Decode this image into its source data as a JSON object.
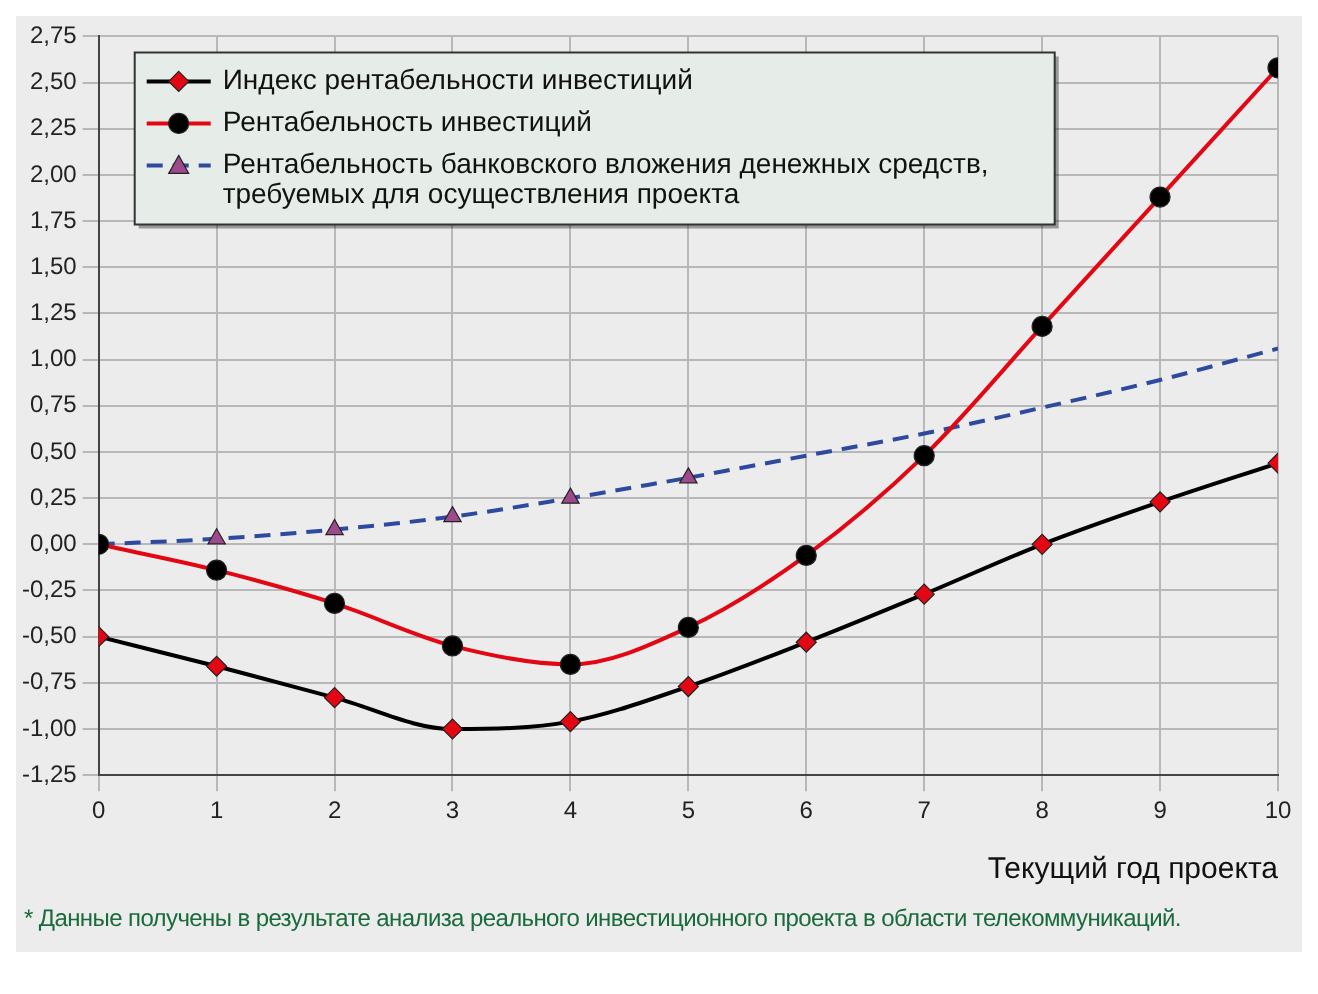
{
  "chart_data": {
    "type": "line",
    "xlabel": "Текущий год проекта",
    "annotations": [
      "* Данные получены в результате анализа реального инвестиционного проекта в области телекоммуникаций."
    ],
    "xlim": [
      0,
      10
    ],
    "xticks": [
      0,
      1,
      2,
      3,
      4,
      5,
      6,
      7,
      8,
      9,
      10
    ],
    "ylim": [
      -1.25,
      2.75
    ],
    "yticks": [
      {
        "value": -1.25,
        "label": "-1,25"
      },
      {
        "value": -1,
        "label": "-1,00"
      },
      {
        "value": -0.75,
        "label": "-0,75"
      },
      {
        "value": -0.5,
        "label": "-0,50"
      },
      {
        "value": -0.25,
        "label": "-0,25"
      },
      {
        "value": 0,
        "label": "0,00"
      },
      {
        "value": 0.25,
        "label": "0,25"
      },
      {
        "value": 0.5,
        "label": "0,50"
      },
      {
        "value": 0.75,
        "label": "0,75"
      },
      {
        "value": 1,
        "label": "1,00"
      },
      {
        "value": 1.25,
        "label": "1,25"
      },
      {
        "value": 1.5,
        "label": "1,50"
      },
      {
        "value": 1.75,
        "label": "1,75"
      },
      {
        "value": 2,
        "label": "2,00"
      },
      {
        "value": 2.25,
        "label": "2,25"
      },
      {
        "value": 2.5,
        "label": "2,50"
      },
      {
        "value": 2.75,
        "label": "2,75"
      }
    ],
    "grid": true,
    "legend": "top left",
    "x": [
      0,
      1,
      2,
      3,
      4,
      5,
      6,
      7,
      8,
      9,
      10
    ],
    "series": [
      {
        "name": "Индекс рентабельности инвестиций",
        "color": "#000000",
        "marker": "diamond",
        "colors": [
          "#e30613",
          "#e30613",
          "#e30613",
          "#e30613",
          "#e30613",
          "#e30613",
          "#e30613",
          "#e30613",
          "#e30613",
          "#e30613",
          "#e30613"
        ],
        "line_style": "solid",
        "values": [
          -0.5,
          -0.66,
          -0.83,
          -1.0,
          -0.96,
          -0.77,
          -0.53,
          -0.27,
          0.0,
          0.23,
          0.44
        ]
      },
      {
        "name": "Рентабельность инвестиций",
        "color": "#e30613",
        "marker": "circle",
        "colors": [
          "#000000",
          "#000000",
          "#000000",
          "#000000",
          "#000000",
          "#000000",
          "#000000",
          "#000000",
          "#000000",
          "#000000",
          "#000000"
        ],
        "line_style": "solid",
        "values": [
          0,
          -0.14,
          -0.32,
          -0.55,
          -0.65,
          -0.45,
          -0.06,
          0.48,
          1.18,
          1.88,
          2.58
        ]
      },
      {
        "name": "Рентабельность банковского вложения денежных средств, требуемых для осуществления проекта",
        "color": "#2e4a9e",
        "marker": "triangle",
        "colors": [
          "#9c4a8c",
          "#9c4a8c",
          "#9c4a8c",
          "#9c4a8c",
          "#9c4a8c",
          "#9c4a8c"
        ],
        "line_style": "dashed",
        "x": [
          0,
          1,
          2,
          3,
          4,
          5
        ],
        "values": [
          0,
          0.03,
          0.08,
          0.15,
          0.25,
          0.36
        ]
      },
      {
        "color": "#2e4a9e",
        "marker": "none",
        "line_style": "dashed",
        "x": [
          5,
          6,
          7,
          8,
          9,
          10
        ],
        "values": [
          0.36,
          0.48,
          0.6,
          0.74,
          0.89,
          1.06
        ]
      }
    ]
  }
}
